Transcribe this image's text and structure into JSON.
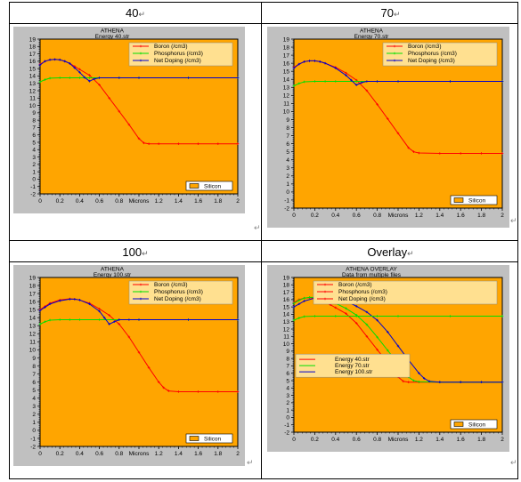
{
  "panels": [
    {
      "header": "40",
      "title": "ATHENA",
      "subtitle": "Energy  40.str",
      "legend": [
        "Boron (/cm3)",
        "Phosphorus (/cm3)",
        "Net Doping (/cm3)"
      ],
      "material": "Silicon"
    },
    {
      "header": "70",
      "title": "ATHENA",
      "subtitle": "Energy  70.str",
      "legend": [
        "Boron (/cm3)",
        "Phosphorus (/cm3)",
        "Net Doping (/cm3)"
      ],
      "material": "Silicon"
    },
    {
      "header": "100",
      "title": "ATHENA",
      "subtitle": "Energy  100.str",
      "legend": [
        "Boron (/cm3)",
        "Phosphorus (/cm3)",
        "Net Doping (/cm3)"
      ],
      "material": "Silicon"
    },
    {
      "header": "Overlay",
      "title": "ATHENA OVERLAY",
      "subtitle": "Data from multiple files",
      "legend": [
        "Boron (/cm3)",
        "Phosphorus (/cm3)",
        "Net Doping (/cm3)"
      ],
      "legend2": [
        "Energy  40.str",
        "Energy  70.str",
        "Energy  100.str"
      ],
      "material": "Silicon"
    }
  ],
  "colors": {
    "plot_bg": "#FFA500",
    "panel_bg": "#C0C0C0",
    "boron": "#FF0000",
    "phosphorus": "#00E000",
    "net_doping": "#0000CC",
    "energy40": "#FF0000",
    "energy70": "#00E000",
    "energy100": "#0000CC"
  },
  "chart_data": [
    {
      "type": "line",
      "title": "ATHENA",
      "subtitle": "Energy  40.str",
      "xlabel": "Microns",
      "xlim": [
        0,
        2
      ],
      "ylim": [
        -2,
        19
      ],
      "xticks": [
        "0",
        "0.2",
        "0.4",
        "0.6",
        "0.8",
        "Microns",
        "1.2",
        "1.4",
        "1.6",
        "1.8",
        "2"
      ],
      "yticks": [
        "19",
        "18",
        "17",
        "16",
        "15",
        "14",
        "13",
        "12",
        "11",
        "10",
        "9",
        "8",
        "7",
        "6",
        "5",
        "4",
        "3",
        "2",
        "1",
        "0",
        "-1",
        "-2"
      ],
      "series": [
        {
          "name": "Boron (/cm3)",
          "x": [
            0,
            0.05,
            0.1,
            0.15,
            0.2,
            0.25,
            0.3,
            0.35,
            0.4,
            0.5,
            0.6,
            0.7,
            0.8,
            0.9,
            1.0,
            1.05,
            1.1,
            1.2,
            1.4,
            1.6,
            1.8,
            2.0
          ],
          "y": [
            15.6,
            16.0,
            16.2,
            16.25,
            16.2,
            16.0,
            15.7,
            15.3,
            14.9,
            14.1,
            12.8,
            11.0,
            9.2,
            7.4,
            5.5,
            4.9,
            4.8,
            4.8,
            4.8,
            4.8,
            4.8,
            4.8
          ]
        },
        {
          "name": "Phosphorus (/cm3)",
          "x": [
            0,
            0.05,
            0.1,
            0.2,
            0.3,
            0.4,
            0.5,
            0.6,
            0.8,
            1.0,
            1.5,
            2.0
          ],
          "y": [
            13.2,
            13.5,
            13.7,
            13.75,
            13.75,
            13.75,
            13.75,
            13.75,
            13.75,
            13.75,
            13.75,
            13.75
          ]
        },
        {
          "name": "Net Doping (/cm3)",
          "x": [
            0,
            0.05,
            0.1,
            0.15,
            0.2,
            0.25,
            0.3,
            0.35,
            0.4,
            0.45,
            0.5,
            0.55,
            0.6,
            0.8,
            1.0,
            1.5,
            2.0
          ],
          "y": [
            15.5,
            16.0,
            16.2,
            16.25,
            16.2,
            16.0,
            15.7,
            15.1,
            14.5,
            13.8,
            13.3,
            13.6,
            13.75,
            13.75,
            13.75,
            13.75,
            13.75
          ]
        }
      ]
    },
    {
      "type": "line",
      "title": "ATHENA",
      "subtitle": "Energy  70.str",
      "xlabel": "Microns",
      "xlim": [
        0,
        2
      ],
      "ylim": [
        -2,
        19
      ],
      "xticks": [
        "0",
        "0.2",
        "0.4",
        "0.6",
        "0.8",
        "Microns",
        "1.2",
        "1.4",
        "1.6",
        "1.8",
        "2"
      ],
      "yticks": [
        "19",
        "18",
        "17",
        "16",
        "15",
        "14",
        "13",
        "12",
        "11",
        "10",
        "9",
        "8",
        "7",
        "6",
        "5",
        "4",
        "3",
        "2",
        "1",
        "0",
        "-1",
        "-2"
      ],
      "series": [
        {
          "name": "Boron (/cm3)",
          "x": [
            0,
            0.05,
            0.1,
            0.15,
            0.2,
            0.25,
            0.3,
            0.4,
            0.5,
            0.6,
            0.7,
            0.8,
            0.9,
            1.0,
            1.1,
            1.15,
            1.2,
            1.4,
            1.6,
            1.8,
            2.0
          ],
          "y": [
            15.5,
            15.9,
            16.2,
            16.3,
            16.3,
            16.2,
            16.0,
            15.5,
            14.8,
            13.9,
            12.6,
            10.9,
            9.1,
            7.3,
            5.5,
            5.0,
            4.85,
            4.8,
            4.8,
            4.8,
            4.8
          ]
        },
        {
          "name": "Phosphorus (/cm3)",
          "x": [
            0,
            0.05,
            0.1,
            0.2,
            0.3,
            0.4,
            0.6,
            0.8,
            1.0,
            1.5,
            2.0
          ],
          "y": [
            13.2,
            13.5,
            13.7,
            13.75,
            13.75,
            13.75,
            13.75,
            13.75,
            13.75,
            13.75,
            13.75
          ]
        },
        {
          "name": "Net Doping (/cm3)",
          "x": [
            0,
            0.05,
            0.1,
            0.15,
            0.2,
            0.25,
            0.3,
            0.4,
            0.5,
            0.55,
            0.6,
            0.65,
            0.7,
            0.8,
            1.0,
            1.5,
            2.0
          ],
          "y": [
            15.4,
            15.9,
            16.2,
            16.3,
            16.3,
            16.2,
            16.0,
            15.4,
            14.5,
            13.9,
            13.3,
            13.6,
            13.75,
            13.75,
            13.75,
            13.75,
            13.75
          ]
        }
      ]
    },
    {
      "type": "line",
      "title": "ATHENA",
      "subtitle": "Energy  100.str",
      "xlabel": "Microns",
      "xlim": [
        0,
        2
      ],
      "ylim": [
        -2,
        19
      ],
      "xticks": [
        "0",
        "0.2",
        "0.4",
        "0.6",
        "0.8",
        "Microns",
        "1.2",
        "1.4",
        "1.6",
        "1.8",
        "2"
      ],
      "yticks": [
        "19",
        "18",
        "17",
        "16",
        "15",
        "14",
        "13",
        "12",
        "11",
        "10",
        "9",
        "8",
        "7",
        "6",
        "5",
        "4",
        "3",
        "2",
        "1",
        "0",
        "-1",
        "-2"
      ],
      "series": [
        {
          "name": "Boron (/cm3)",
          "x": [
            0,
            0.05,
            0.1,
            0.2,
            0.3,
            0.35,
            0.4,
            0.5,
            0.6,
            0.7,
            0.8,
            0.9,
            1.0,
            1.1,
            1.2,
            1.25,
            1.3,
            1.4,
            1.6,
            1.8,
            2.0
          ],
          "y": [
            15.0,
            15.4,
            15.8,
            16.2,
            16.35,
            16.3,
            16.2,
            15.8,
            15.1,
            14.3,
            13.2,
            11.6,
            9.7,
            7.8,
            6.0,
            5.3,
            4.9,
            4.8,
            4.8,
            4.8,
            4.8
          ]
        },
        {
          "name": "Phosphorus (/cm3)",
          "x": [
            0,
            0.05,
            0.1,
            0.2,
            0.3,
            0.4,
            0.6,
            0.8,
            1.0,
            1.5,
            2.0
          ],
          "y": [
            13.2,
            13.5,
            13.7,
            13.75,
            13.75,
            13.75,
            13.75,
            13.75,
            13.75,
            13.75,
            13.75
          ]
        },
        {
          "name": "Net Doping (/cm3)",
          "x": [
            0,
            0.05,
            0.1,
            0.2,
            0.3,
            0.35,
            0.4,
            0.5,
            0.6,
            0.65,
            0.7,
            0.75,
            0.8,
            0.9,
            1.0,
            1.5,
            2.0
          ],
          "y": [
            14.9,
            15.3,
            15.7,
            16.1,
            16.3,
            16.3,
            16.2,
            15.7,
            14.8,
            14.0,
            13.2,
            13.5,
            13.75,
            13.75,
            13.75,
            13.75,
            13.75
          ]
        }
      ]
    },
    {
      "type": "line",
      "title": "ATHENA OVERLAY",
      "subtitle": "Data from multiple files",
      "xlabel": "Microns",
      "xlim": [
        0,
        2
      ],
      "ylim": [
        -2,
        19
      ],
      "xticks": [
        "0",
        "0.2",
        "0.4",
        "0.6",
        "0.8",
        "Microns",
        "1.2",
        "1.4",
        "1.6",
        "1.8",
        "2"
      ],
      "yticks": [
        "19",
        "18",
        "17",
        "16",
        "15",
        "14",
        "13",
        "12",
        "11",
        "10",
        "9",
        "8",
        "7",
        "6",
        "5",
        "4",
        "3",
        "2",
        "1",
        "0",
        "-1",
        "-2"
      ],
      "series": [
        {
          "name": "Energy  40.str",
          "x": [
            0,
            0.05,
            0.1,
            0.15,
            0.2,
            0.25,
            0.3,
            0.35,
            0.4,
            0.5,
            0.6,
            0.7,
            0.8,
            0.9,
            1.0,
            1.05,
            1.1,
            1.2,
            1.4,
            1.6,
            1.8,
            2.0
          ],
          "y": [
            15.6,
            16.0,
            16.2,
            16.25,
            16.2,
            16.0,
            15.7,
            15.3,
            14.9,
            14.1,
            12.8,
            11.0,
            9.2,
            7.4,
            5.5,
            4.9,
            4.8,
            4.8,
            4.8,
            4.8,
            4.8,
            4.8
          ]
        },
        {
          "name": "Energy  70.str",
          "x": [
            0,
            0.05,
            0.1,
            0.15,
            0.2,
            0.25,
            0.3,
            0.4,
            0.5,
            0.6,
            0.7,
            0.8,
            0.9,
            1.0,
            1.1,
            1.15,
            1.2,
            1.4,
            1.6,
            1.8,
            2.0
          ],
          "y": [
            15.5,
            15.9,
            16.2,
            16.3,
            16.3,
            16.2,
            16.0,
            15.5,
            14.8,
            13.9,
            12.6,
            10.9,
            9.1,
            7.3,
            5.5,
            5.0,
            4.85,
            4.8,
            4.8,
            4.8,
            4.8
          ]
        },
        {
          "name": "Energy  100.str",
          "x": [
            0,
            0.05,
            0.1,
            0.2,
            0.3,
            0.35,
            0.4,
            0.5,
            0.6,
            0.7,
            0.8,
            0.9,
            1.0,
            1.1,
            1.2,
            1.25,
            1.3,
            1.4,
            1.6,
            1.8,
            2.0
          ],
          "y": [
            15.0,
            15.4,
            15.8,
            16.2,
            16.35,
            16.3,
            16.2,
            15.8,
            15.1,
            14.3,
            13.2,
            11.6,
            9.7,
            7.8,
            6.0,
            5.3,
            4.9,
            4.8,
            4.8,
            4.8,
            4.8
          ]
        },
        {
          "name": "Phosphorus",
          "x": [
            0,
            0.05,
            0.1,
            0.2,
            0.4,
            0.6,
            0.8,
            1.0,
            1.5,
            2.0
          ],
          "y": [
            13.2,
            13.5,
            13.7,
            13.75,
            13.75,
            13.75,
            13.75,
            13.75,
            13.75,
            13.75
          ]
        }
      ]
    }
  ]
}
